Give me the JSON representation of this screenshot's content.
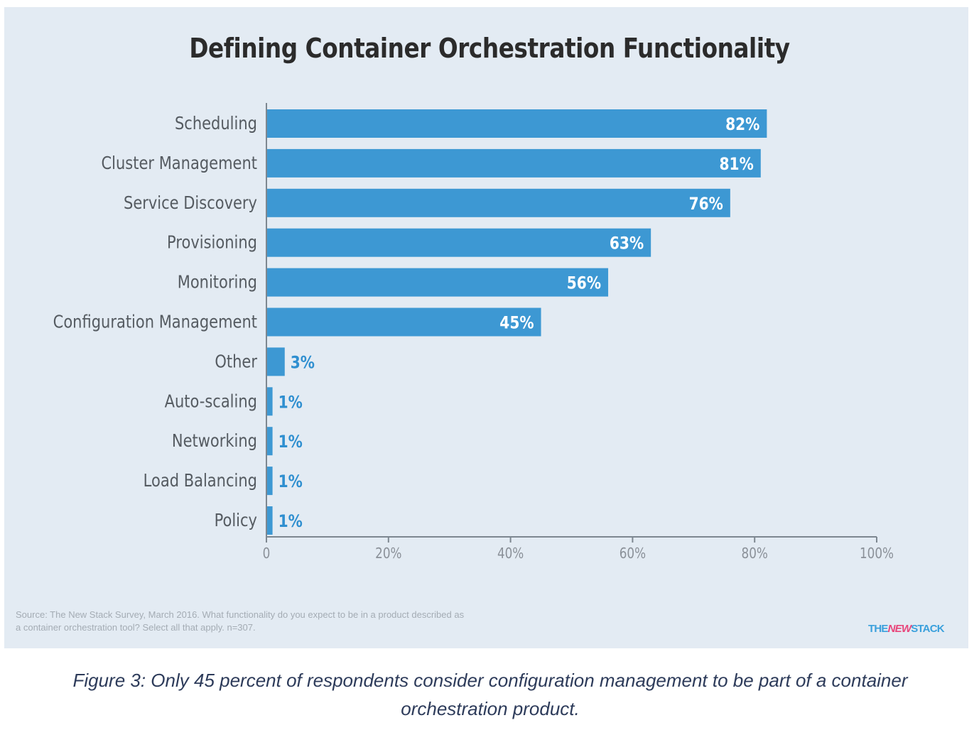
{
  "chart_data": {
    "type": "bar",
    "orientation": "horizontal",
    "title": "Defining Container Orchestration Functionality",
    "categories": [
      "Scheduling",
      "Cluster Management",
      "Service Discovery",
      "Provisioning",
      "Monitoring",
      "Configuration Management",
      "Other",
      "Auto-scaling",
      "Networking",
      "Load Balancing",
      "Policy"
    ],
    "values": [
      82,
      81,
      76,
      63,
      56,
      45,
      3,
      1,
      1,
      1,
      1
    ],
    "value_labels": [
      "82%",
      "81%",
      "76%",
      "63%",
      "56%",
      "45%",
      "3%",
      "1%",
      "1%",
      "1%",
      "1%"
    ],
    "xlim": [
      0,
      100
    ],
    "xticks": [
      0,
      20,
      40,
      60,
      80,
      100
    ],
    "xtick_labels": [
      "0",
      "20%",
      "40%",
      "60%",
      "80%",
      "100%"
    ],
    "grid": false,
    "bar_color": "#3d98d3"
  },
  "colors": {
    "background": "#e3ebf3",
    "bar": "#3d98d3",
    "label_outside": "#2f8fd0",
    "axis": "#7d8790"
  },
  "source": {
    "line1": "Source: The New Stack Survey, March 2016. What functionality do you expect to be in a product described as",
    "line2": "a container orchestration tool? Select all that apply. n=307."
  },
  "logo": {
    "part1": "THE",
    "part2": "NEW",
    "part3": "STACK"
  },
  "caption": {
    "line1": "Figure 3: Only 45 percent of respondents consider configuration management to be part of a container",
    "line2": "orchestration product."
  }
}
